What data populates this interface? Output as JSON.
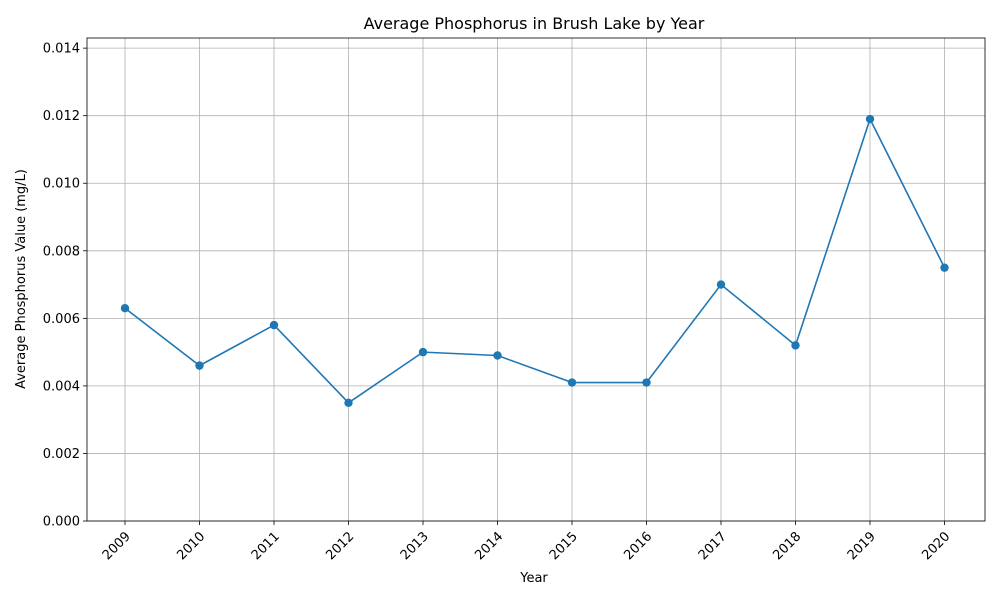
{
  "chart_data": {
    "type": "line",
    "title": "Average Phosphorus in Brush Lake by Year",
    "xlabel": "Year",
    "ylabel": "Average Phosphorus Value (mg/L)",
    "categories": [
      "2009",
      "2010",
      "2011",
      "2012",
      "2013",
      "2014",
      "2015",
      "2016",
      "2017",
      "2018",
      "2019",
      "2020"
    ],
    "series": [
      {
        "values": [
          0.0063,
          0.0046,
          0.0058,
          0.0035,
          0.005,
          0.0049,
          0.0041,
          0.0041,
          0.007,
          0.0052,
          0.0119,
          0.0075
        ],
        "color": "#1f77b4",
        "marker": "circle"
      }
    ],
    "ylim": [
      0,
      0.0143
    ],
    "yticks": [
      "0.000",
      "0.002",
      "0.004",
      "0.006",
      "0.008",
      "0.010",
      "0.012",
      "0.014"
    ],
    "grid": true,
    "legend": "none",
    "x_tick_rotation": "45-degree"
  }
}
